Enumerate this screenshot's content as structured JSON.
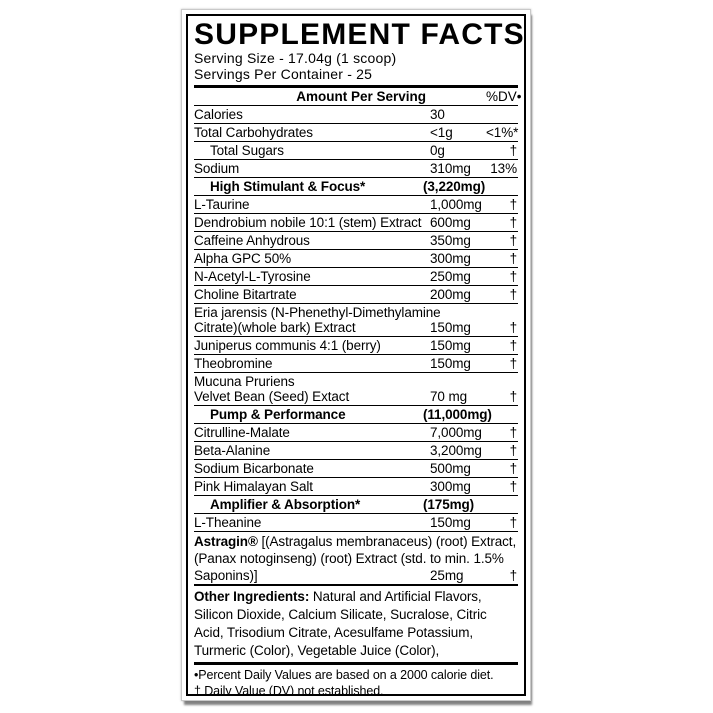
{
  "colors": {
    "text": "#000000",
    "background": "#ffffff",
    "border": "#000000"
  },
  "label": {
    "title": "SUPPLEMENT FACTS",
    "serving_size": "Serving Size - 17.04g (1 scoop)",
    "servings_per_container": "Servings Per Container - 25",
    "columns": {
      "amount": "Amount Per Serving",
      "dv": "%DV•"
    }
  },
  "rows": [
    {
      "type": "item",
      "name": "Calories",
      "amount": "30",
      "dv": ""
    },
    {
      "type": "item",
      "name": "Total Carbohydrates",
      "amount": "<1g",
      "dv": "<1%*"
    },
    {
      "type": "indent",
      "name": "Total Sugars",
      "amount": "0g",
      "dv": "†"
    },
    {
      "type": "item",
      "name": "Sodium",
      "amount": "310mg",
      "dv": "13%"
    },
    {
      "type": "section",
      "name": "High Stimulant & Focus*",
      "amount": "(3,220mg)",
      "dv": ""
    },
    {
      "type": "item",
      "name": "L-Taurine",
      "amount": "1,000mg",
      "dv": "†"
    },
    {
      "type": "item",
      "name": "Dendrobium nobile 10:1 (stem) Extract",
      "amount": "600mg",
      "dv": "†"
    },
    {
      "type": "item",
      "name": "Caffeine Anhydrous",
      "amount": "350mg",
      "dv": "†"
    },
    {
      "type": "item",
      "name": "Alpha GPC 50%",
      "amount": "300mg",
      "dv": "†"
    },
    {
      "type": "item",
      "name": "N-Acetyl-L-Tyrosine",
      "amount": "250mg",
      "dv": "†"
    },
    {
      "type": "item",
      "name": "Choline Bitartrate",
      "amount": "200mg",
      "dv": "†"
    },
    {
      "type": "multi",
      "lines": [
        "Eria jarensis (N-Phenethyl-Dimethylamine",
        "Citrate)(whole bark) Extract"
      ],
      "amount": "150mg",
      "dv": "†"
    },
    {
      "type": "item",
      "name": "Juniperus communis 4:1 (berry)",
      "amount": "150mg",
      "dv": "†"
    },
    {
      "type": "item",
      "name": "Theobromine",
      "amount": "150mg",
      "dv": "†"
    },
    {
      "type": "multi",
      "lines": [
        "Mucuna Pruriens",
        "Velvet Bean (Seed) Extact"
      ],
      "amount": "70 mg",
      "dv": "†"
    },
    {
      "type": "section",
      "name": "Pump & Performance",
      "amount": "(11,000mg)",
      "dv": ""
    },
    {
      "type": "item",
      "name": "Citrulline-Malate",
      "amount": "7,000mg",
      "dv": "†"
    },
    {
      "type": "item",
      "name": "Beta-Alanine",
      "amount": "3,200mg",
      "dv": "†"
    },
    {
      "type": "item",
      "name": "Sodium Bicarbonate",
      "amount": "500mg",
      "dv": "†"
    },
    {
      "type": "item",
      "name": "Pink Himalayan Salt",
      "amount": "300mg",
      "dv": "†"
    },
    {
      "type": "section",
      "name": "Amplifier & Absorption*",
      "amount": "(175mg)",
      "dv": ""
    },
    {
      "type": "item",
      "name": "L-Theanine",
      "amount": "150mg",
      "dv": "†"
    }
  ],
  "astragin": {
    "lead": "Astragin®",
    "line1_rest": " [(Astragalus membranaceus) (root) Extract,",
    "line2": "(Panax notoginseng) (root) Extract (std. to min. 1.5%",
    "line3": "Saponins)]",
    "amount": "25mg",
    "dv": "†"
  },
  "other_ingredients": {
    "lead": "Other Ingredients:",
    "text": " Natural and Artificial Flavors, Silicon Dioxide, Calcium Silicate, Sucralose, Citric Acid, Trisodium Citrate, Acesulfame Potassium, Turmeric (Color), Vegetable Juice (Color),"
  },
  "footnotes": [
    "•Percent Daily Values are based on a 2000 calorie diet.",
    "† Daily Value (DV) not established."
  ]
}
